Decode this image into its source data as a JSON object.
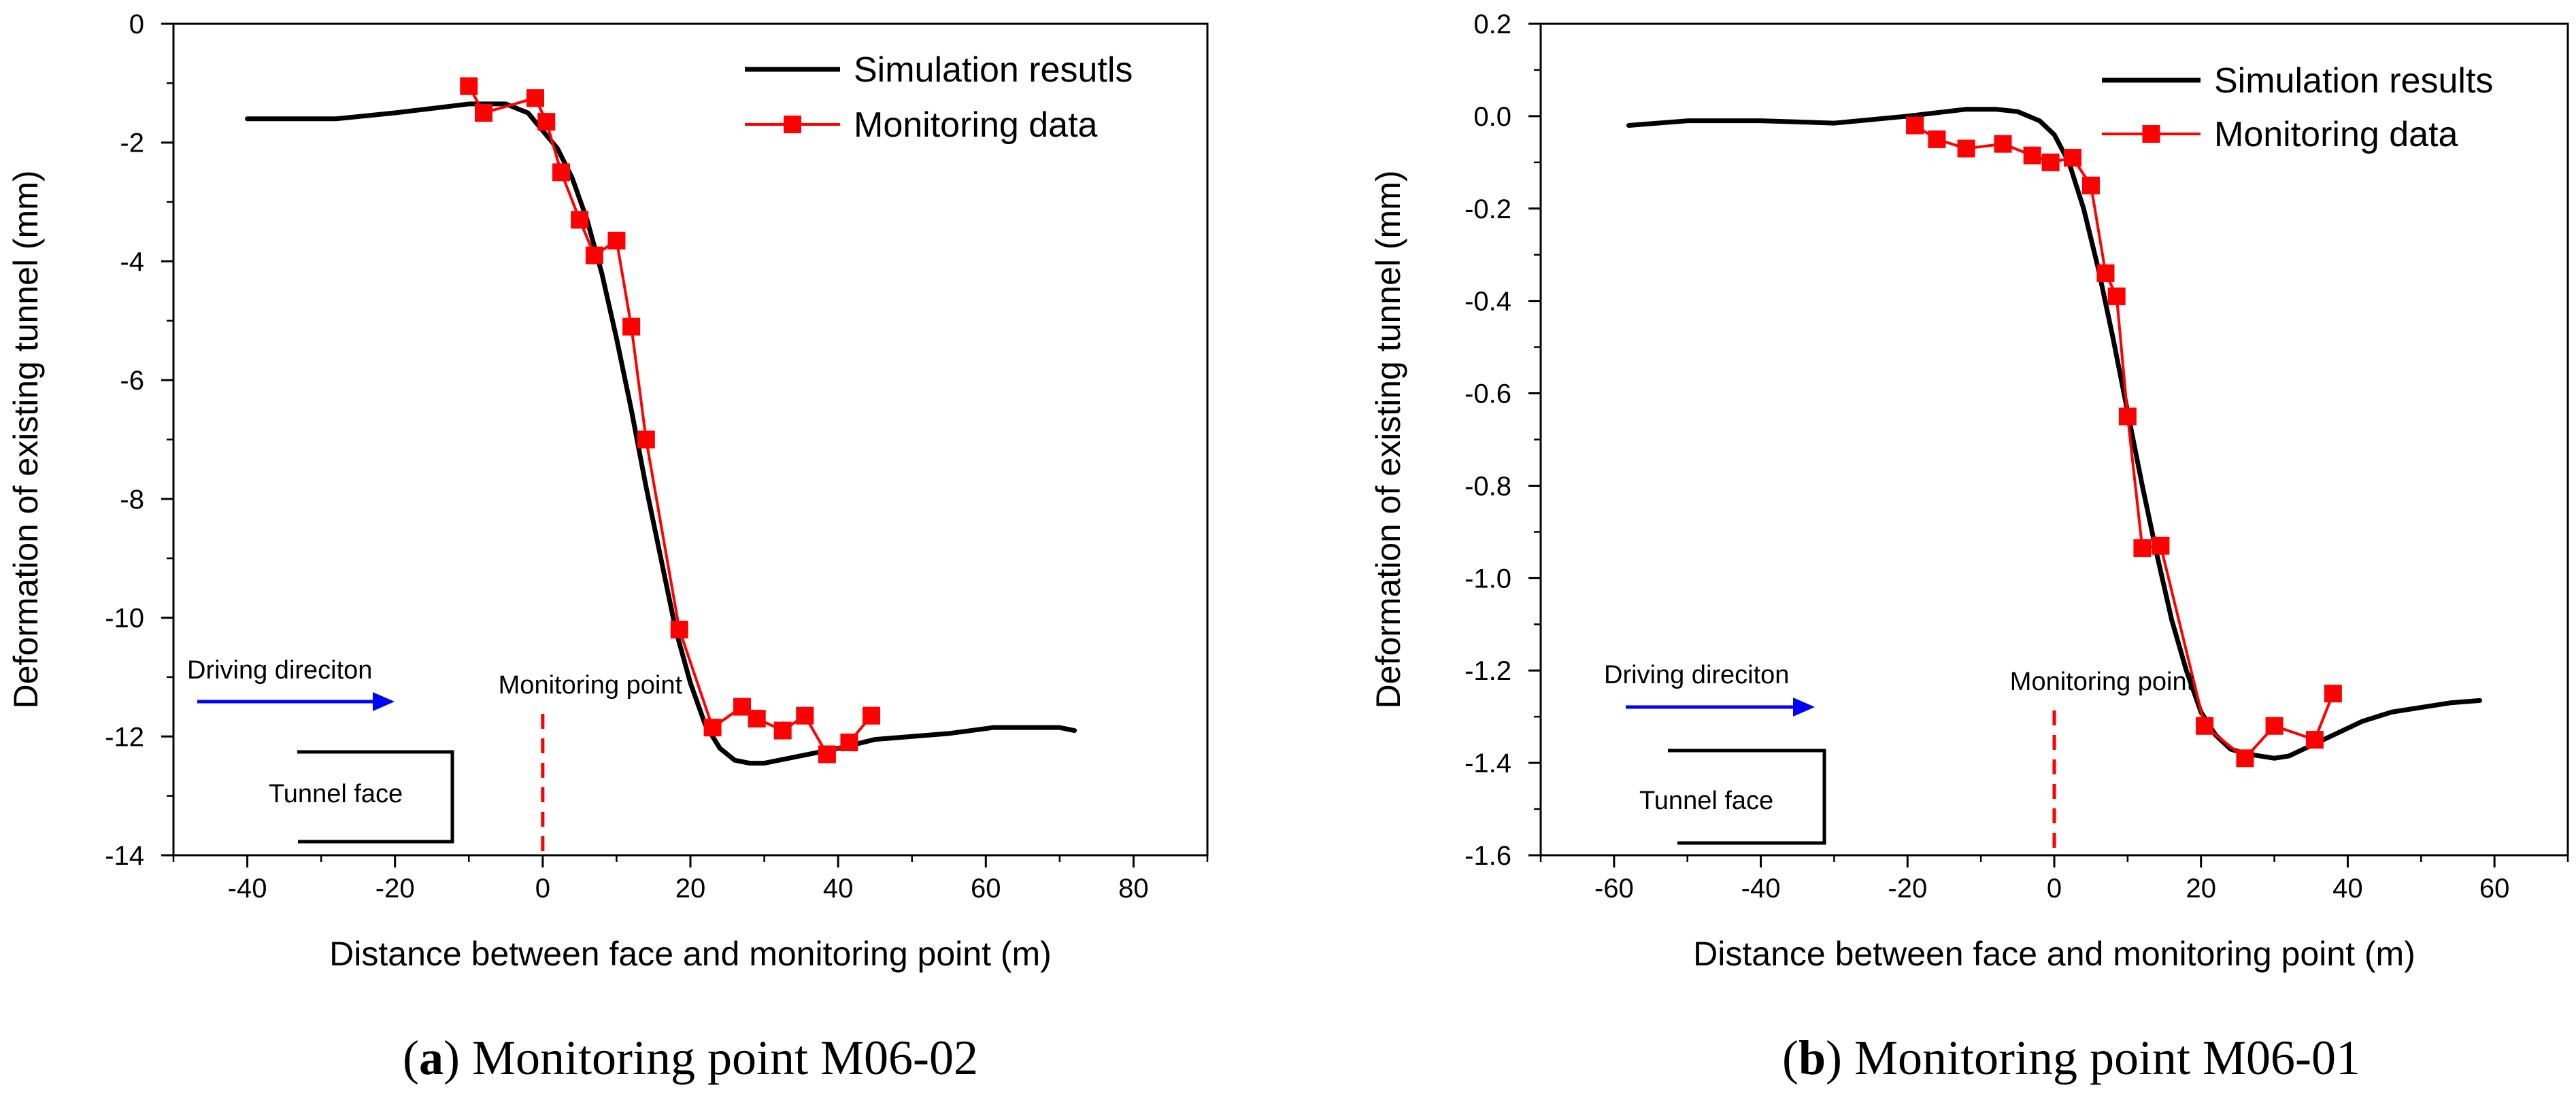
{
  "chart_data": [
    {
      "type": "line",
      "caption_letter": "a",
      "caption_text": "Monitoring point M06-02",
      "xlabel": "Distance between face and monitoring point (m)",
      "ylabel": "Deformation of existing tunnel (mm)",
      "xlim": [
        -50,
        90
      ],
      "ylim": [
        -14,
        0
      ],
      "xticks": [
        -40,
        -20,
        0,
        20,
        40,
        60,
        80
      ],
      "yticks": [
        0,
        -2,
        -4,
        -6,
        -8,
        -10,
        -12,
        -14
      ],
      "xtick_labels": [
        "-40",
        "-20",
        "0",
        "20",
        "40",
        "60",
        "80"
      ],
      "ytick_labels": [
        "0",
        "-2",
        "-4",
        "-6",
        "-8",
        "-10",
        "-12",
        "-14"
      ],
      "legend_location": "top-right",
      "series": [
        {
          "name": "Simulation resutls",
          "color": "#000000",
          "marker": "none",
          "x": [
            -40,
            -28,
            -20,
            -10,
            -5,
            -2,
            0,
            2,
            4,
            6,
            8,
            10,
            12,
            14,
            16,
            18,
            20,
            22,
            24,
            26,
            28,
            30,
            32,
            34,
            36,
            40,
            45,
            50,
            55,
            58,
            61,
            63,
            66,
            70,
            72
          ],
          "y": [
            -1.6,
            -1.6,
            -1.5,
            -1.35,
            -1.35,
            -1.5,
            -1.8,
            -2.1,
            -2.6,
            -3.3,
            -4.2,
            -5.3,
            -6.5,
            -7.8,
            -9.0,
            -10.2,
            -11.1,
            -11.8,
            -12.2,
            -12.4,
            -12.45,
            -12.45,
            -12.4,
            -12.35,
            -12.3,
            -12.2,
            -12.05,
            -12.0,
            -11.95,
            -11.9,
            -11.85,
            -11.85,
            -11.85,
            -11.85,
            -11.9
          ]
        },
        {
          "name": "Monitoring data",
          "color": "#ff0000",
          "marker": "square",
          "x": [
            -10,
            -8,
            -1,
            0.5,
            2.5,
            5,
            7,
            10,
            12,
            14,
            18.5,
            23,
            27,
            29,
            32.5,
            35.5,
            38.5,
            41.5,
            44.5
          ],
          "y": [
            -1.05,
            -1.5,
            -1.25,
            -1.65,
            -2.5,
            -3.3,
            -3.9,
            -3.65,
            -5.1,
            -7.0,
            -10.2,
            -11.85,
            -11.5,
            -11.7,
            -11.9,
            -11.65,
            -12.3,
            -12.1,
            -11.65
          ]
        }
      ],
      "annotations": {
        "driving_direction": "Driving direciton",
        "monitoring_point": "Monitoring point",
        "tunnel_face": "Tunnel face"
      }
    },
    {
      "type": "line",
      "caption_letter": "b",
      "caption_text": "Monitoring point M06-01",
      "xlabel": "Distance between face and monitoring point (m)",
      "ylabel": "Deformation of existing tunnel (mm)",
      "xlim": [
        -70,
        70
      ],
      "ylim": [
        -1.6,
        0.2
      ],
      "xticks": [
        -60,
        -40,
        -20,
        0,
        20,
        40,
        60
      ],
      "yticks": [
        0.2,
        0.0,
        -0.2,
        -0.4,
        -0.6,
        -0.8,
        -1.0,
        -1.2,
        -1.4,
        -1.6
      ],
      "xtick_labels": [
        "-60",
        "-40",
        "-20",
        "0",
        "20",
        "40",
        "60"
      ],
      "ytick_labels": [
        "0.2",
        "0.0",
        "-0.2",
        "-0.4",
        "-0.6",
        "-0.8",
        "-1.0",
        "-1.2",
        "-1.4",
        "-1.6"
      ],
      "legend_location": "top-right",
      "series": [
        {
          "name": "Simulation results",
          "color": "#000000",
          "marker": "none",
          "x": [
            -58,
            -50,
            -40,
            -30,
            -20,
            -12,
            -8,
            -5,
            -2,
            0,
            2,
            4,
            6,
            8,
            10,
            12,
            14,
            16,
            18,
            20,
            22,
            24,
            26,
            28,
            30,
            32,
            34,
            38,
            42,
            46,
            50,
            54,
            58
          ],
          "y": [
            -0.02,
            -0.01,
            -0.01,
            -0.015,
            0.0,
            0.015,
            0.015,
            0.01,
            -0.01,
            -0.04,
            -0.1,
            -0.2,
            -0.33,
            -0.48,
            -0.64,
            -0.8,
            -0.95,
            -1.09,
            -1.2,
            -1.29,
            -1.34,
            -1.37,
            -1.38,
            -1.385,
            -1.39,
            -1.385,
            -1.37,
            -1.34,
            -1.31,
            -1.29,
            -1.28,
            -1.27,
            -1.265
          ]
        },
        {
          "name": "Monitoring data",
          "color": "#ff0000",
          "marker": "square",
          "x": [
            -19,
            -16,
            -12,
            -7,
            -3,
            -0.5,
            2.5,
            5,
            7,
            8.5,
            10,
            12,
            14.5,
            20.5,
            26,
            30,
            35.5,
            38
          ],
          "y": [
            -0.02,
            -0.05,
            -0.07,
            -0.06,
            -0.085,
            -0.1,
            -0.09,
            -0.15,
            -0.34,
            -0.39,
            -0.65,
            -0.935,
            -0.93,
            -1.32,
            -1.39,
            -1.32,
            -1.35,
            -1.25
          ]
        }
      ],
      "annotations": {
        "driving_direction": "Driving direciton",
        "monitoring_point": "Monitoring point",
        "tunnel_face": "Tunnel face"
      }
    }
  ]
}
